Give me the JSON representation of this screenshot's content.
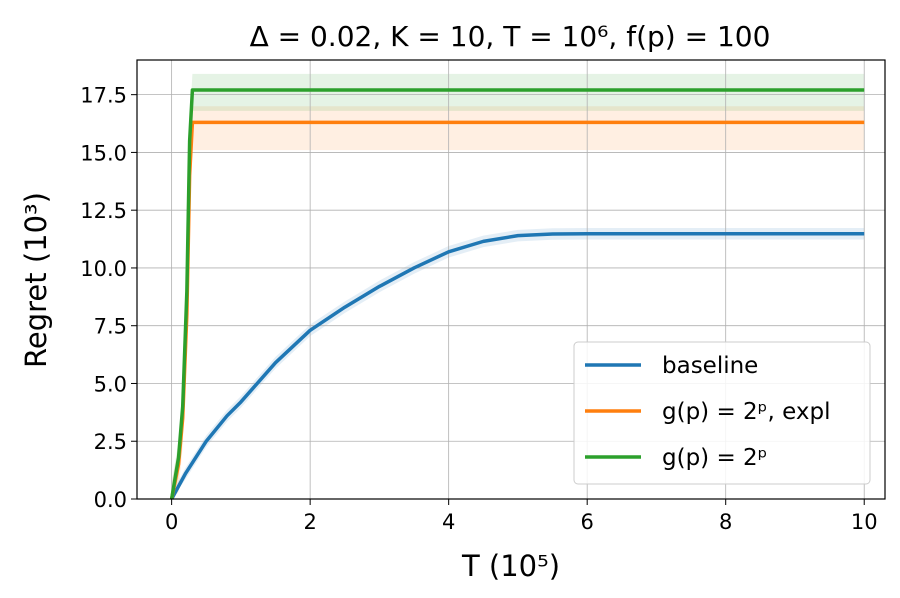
{
  "chart_data": {
    "type": "line",
    "title": "Δ = 0.02, K = 10, T = 10⁶, f(p) = 100",
    "xlabel": "T (10⁵)",
    "ylabel": "Regret (10³)",
    "xlim": [
      -0.5,
      10.3
    ],
    "ylim": [
      0,
      19
    ],
    "xticks": [
      0,
      2,
      4,
      6,
      8,
      10
    ],
    "xtick_labels": [
      "0",
      "2",
      "4",
      "6",
      "8",
      "10"
    ],
    "yticks": [
      0,
      2.5,
      5,
      7.5,
      10,
      12.5,
      15,
      17.5
    ],
    "ytick_labels": [
      "0.0",
      "2.5",
      "5.0",
      "7.5",
      "10.0",
      "12.5",
      "15.0",
      "17.5"
    ],
    "grid": true,
    "legend_position": "lower-right",
    "series": [
      {
        "name": "baseline",
        "color": "#1f77b4",
        "x": [
          0,
          0.2,
          0.5,
          0.8,
          1.0,
          1.5,
          2.0,
          2.5,
          3.0,
          3.5,
          4.0,
          4.5,
          5.0,
          5.5,
          6.0,
          7.0,
          8.0,
          9.0,
          10.0
        ],
        "y": [
          0,
          1.1,
          2.5,
          3.6,
          4.2,
          5.9,
          7.3,
          8.3,
          9.2,
          10.0,
          10.7,
          11.15,
          11.4,
          11.47,
          11.48,
          11.48,
          11.48,
          11.48,
          11.48
        ],
        "band": [
          0.25,
          0.25
        ]
      },
      {
        "name": "g(p) = 2ᵖ, expl",
        "color": "#ff7f0e",
        "x": [
          0,
          0.1,
          0.16,
          0.22,
          0.26,
          0.3,
          10.0
        ],
        "y": [
          0,
          1.5,
          3.5,
          8.0,
          14.0,
          16.3,
          16.3
        ],
        "band": [
          1.2,
          0.7
        ]
      },
      {
        "name": "g(p) = 2ᵖ",
        "color": "#2ca02c",
        "x": [
          0,
          0.1,
          0.16,
          0.22,
          0.26,
          0.3,
          10.0
        ],
        "y": [
          0,
          1.8,
          4.0,
          9.0,
          15.5,
          17.7,
          17.7
        ],
        "band": [
          0.9,
          0.7
        ]
      }
    ]
  }
}
